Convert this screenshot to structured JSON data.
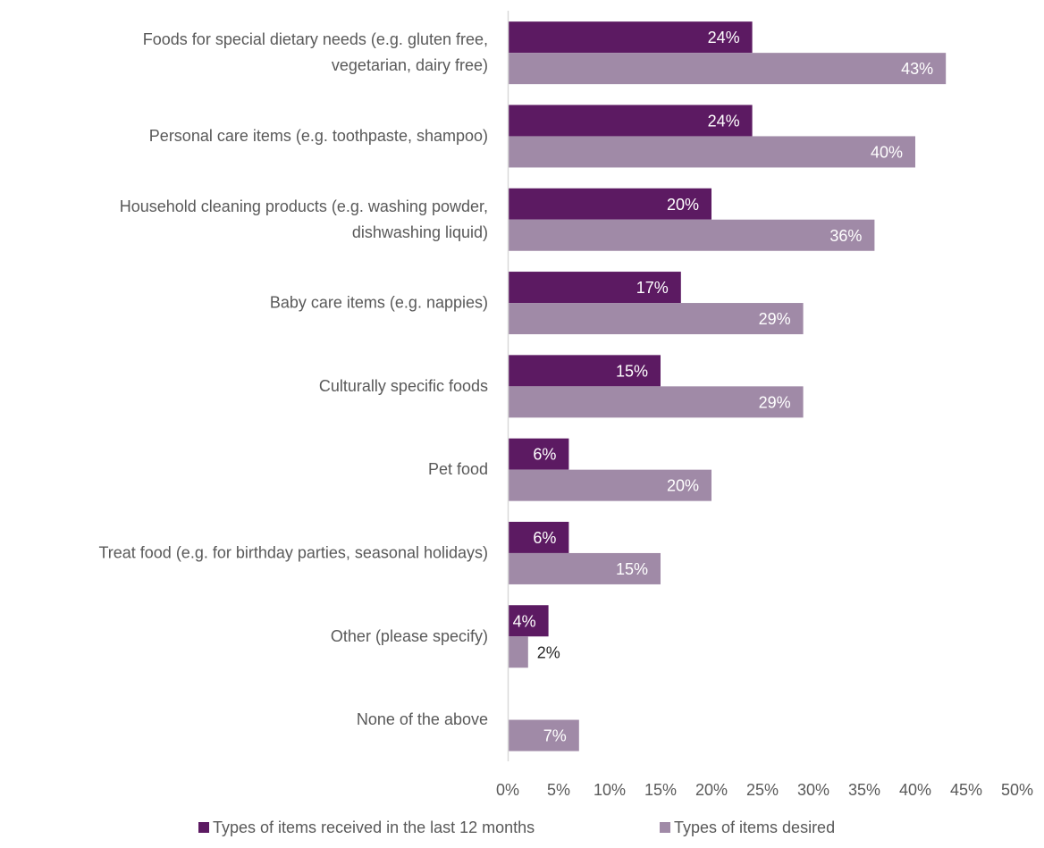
{
  "colors": {
    "received": "#5c1a62",
    "desired": "#a08aa7",
    "axis": "#d9d9d9",
    "text": "#595959"
  },
  "chart_data": {
    "type": "bar",
    "orientation": "horizontal",
    "categories": [
      [
        "Foods for special dietary needs (e.g. gluten free,",
        "vegetarian, dairy free)"
      ],
      [
        "Personal care items (e.g. toothpaste, shampoo)"
      ],
      [
        "Household cleaning products (e.g. washing powder,",
        "dishwashing liquid)"
      ],
      [
        "Baby care items (e.g. nappies)"
      ],
      [
        "Culturally specific foods"
      ],
      [
        "Pet food"
      ],
      [
        "Treat food (e.g. for birthday parties, seasonal holidays)"
      ],
      [
        "Other (please specify)"
      ],
      [
        "None of the above"
      ]
    ],
    "series": [
      {
        "name": "Types of items received in the last 12 months",
        "values": [
          24,
          24,
          20,
          17,
          15,
          6,
          6,
          4,
          0
        ],
        "labels": [
          "24%",
          "24%",
          "20%",
          "17%",
          "15%",
          "6%",
          "6%",
          "4%",
          ""
        ]
      },
      {
        "name": "Types of items desired",
        "values": [
          43,
          40,
          36,
          29,
          29,
          20,
          15,
          2,
          7
        ],
        "labels": [
          "43%",
          "40%",
          "36%",
          "29%",
          "29%",
          "20%",
          "15%",
          "2%",
          "7%"
        ]
      }
    ],
    "xlim": [
      0,
      50
    ],
    "xticks": [
      "0%",
      "5%",
      "10%",
      "15%",
      "20%",
      "25%",
      "30%",
      "35%",
      "40%",
      "45%",
      "50%"
    ],
    "grid": false,
    "legend_position": "bottom"
  }
}
